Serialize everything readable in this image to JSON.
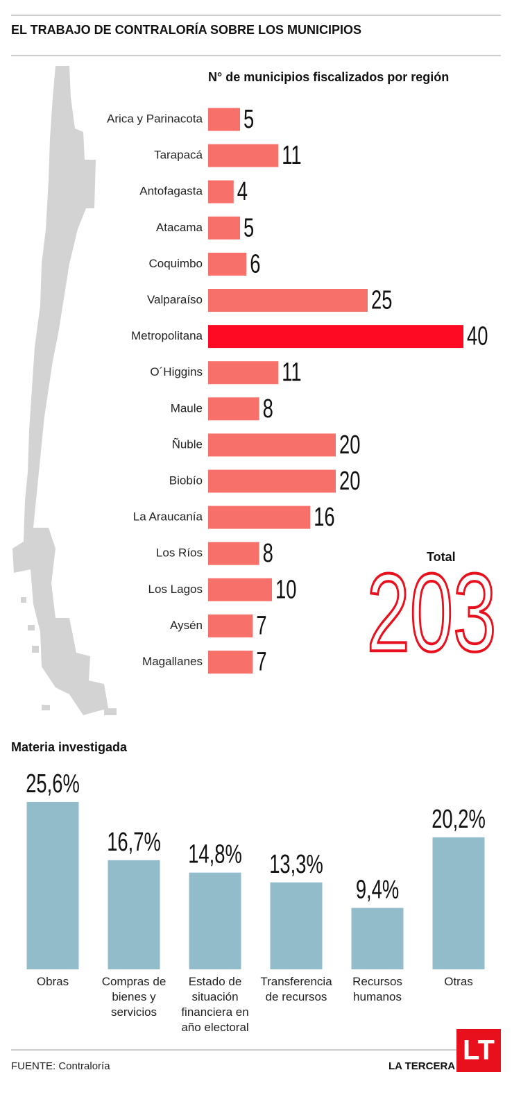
{
  "header": {
    "title": "EL TRABAJO DE CONTRALORÍA SOBRE LOS MUNICIPIOS"
  },
  "chart_data": [
    {
      "type": "hbar",
      "title": "N° de municipios fiscalizados por región",
      "categories": [
        "Arica y Parinacota",
        "Tarapacá",
        "Antofagasta",
        "Atacama",
        "Coquimbo",
        "Valparaíso",
        "Metropolitana",
        "O´Higgins",
        "Maule",
        "Ñuble",
        "Biobío",
        "La Araucanía",
        "Los Ríos",
        "Los Lagos",
        "Aysén",
        "Magallanes"
      ],
      "values": [
        5,
        11,
        4,
        5,
        6,
        25,
        40,
        11,
        8,
        20,
        20,
        16,
        8,
        10,
        7,
        7
      ],
      "colors": [
        "#f7716a",
        "#f7716a",
        "#f7716a",
        "#f7716a",
        "#f7716a",
        "#f7716a",
        "#ff0a22",
        "#f7716a",
        "#f7716a",
        "#f7716a",
        "#f7716a",
        "#f7716a",
        "#f7716a",
        "#f7716a",
        "#f7716a",
        "#f7716a"
      ],
      "xlim": [
        0,
        40
      ]
    },
    {
      "type": "bar",
      "title": "Materia investigada",
      "categories": [
        "Obras",
        "Compras de bienes y servicios",
        "Estado de situación financiera en año electoral",
        "Transferencia de recursos",
        "Recursos humanos",
        "Otras"
      ],
      "values": [
        25.6,
        16.7,
        14.8,
        13.3,
        9.4,
        20.2
      ],
      "value_labels": [
        "25,6%",
        "16,7%",
        "14,8%",
        "13,3%",
        "9,4%",
        "20,2%"
      ],
      "color": "#93bccb",
      "ylim": [
        0,
        25.6
      ]
    }
  ],
  "total": {
    "label": "Total",
    "value": 203
  },
  "footer": {
    "source": "FUENTE: Contraloría",
    "brand": "LA TERCERA",
    "logo": "LT"
  }
}
